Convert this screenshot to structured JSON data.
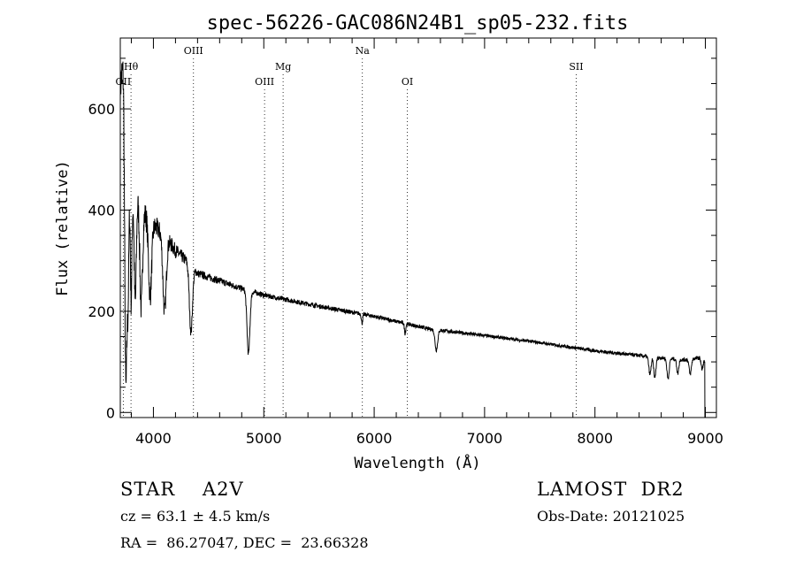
{
  "chart_data": {
    "type": "line",
    "title": "spec-56226-GAC086N24B1_sp05-232.fits",
    "xlabel": "Wavelength (Å)",
    "ylabel": "Flux (relative)",
    "xlim": [
      3700,
      9100
    ],
    "ylim": [
      -10,
      740
    ],
    "xticks": [
      4000,
      5000,
      6000,
      7000,
      8000,
      9000
    ],
    "xtick_labels": [
      "4000",
      "5000",
      "6000",
      "7000",
      "8000",
      "9000"
    ],
    "yticks": [
      0,
      200,
      400,
      600
    ],
    "ytick_labels": [
      "0",
      "200",
      "400",
      "600"
    ],
    "grid": false,
    "lines": [
      {
        "label": "OII",
        "x": 3727,
        "row": 3
      },
      {
        "label": "Hθ",
        "x": 3797,
        "row": 2
      },
      {
        "label": "OIII",
        "x": 4363,
        "row": 1
      },
      {
        "label": "OIII",
        "x": 5007,
        "row": 3
      },
      {
        "label": "Mg",
        "x": 5175,
        "row": 2
      },
      {
        "label": "Na",
        "x": 5893,
        "row": 1
      },
      {
        "label": "OI",
        "x": 6300,
        "row": 3
      },
      {
        "label": "SII",
        "x": 7830,
        "row": 2
      }
    ],
    "series": [
      {
        "continuum": [
          [
            3700,
            640
          ],
          [
            3730,
            700
          ],
          [
            3750,
            620
          ],
          [
            3800,
            470
          ],
          [
            3900,
            400
          ],
          [
            4000,
            370
          ],
          [
            4100,
            350
          ],
          [
            4200,
            320
          ],
          [
            4300,
            300
          ],
          [
            4400,
            275
          ],
          [
            4600,
            260
          ],
          [
            4800,
            245
          ],
          [
            5000,
            232
          ],
          [
            5500,
            210
          ],
          [
            6000,
            190
          ],
          [
            6500,
            165
          ],
          [
            7000,
            152
          ],
          [
            7500,
            138
          ],
          [
            8000,
            122
          ],
          [
            8500,
            110
          ],
          [
            8800,
            104
          ],
          [
            8950,
            108
          ],
          [
            9000,
            100
          ]
        ],
        "absorption": [
          [
            3750,
            560,
            10
          ],
          [
            3771,
            290,
            8
          ],
          [
            3798,
            250,
            8
          ],
          [
            3835,
            230,
            10
          ],
          [
            3889,
            200,
            12
          ],
          [
            3970,
            150,
            14
          ],
          [
            4101,
            150,
            15
          ],
          [
            4340,
            130,
            14
          ],
          [
            4861,
            125,
            13
          ],
          [
            6563,
            40,
            12
          ],
          [
            5890,
            18,
            6
          ],
          [
            6280,
            20,
            6
          ],
          [
            8498,
            35,
            10
          ],
          [
            8542,
            40,
            10
          ],
          [
            8662,
            40,
            10
          ],
          [
            8750,
            28,
            9
          ],
          [
            8863,
            30,
            10
          ],
          [
            8970,
            20,
            8
          ]
        ],
        "noise": [
          [
            3700,
            40
          ],
          [
            3800,
            35
          ],
          [
            3900,
            28
          ],
          [
            4000,
            22
          ],
          [
            4200,
            14
          ],
          [
            4400,
            8
          ],
          [
            5000,
            5
          ],
          [
            6000,
            4
          ],
          [
            7500,
            3
          ],
          [
            9000,
            4
          ]
        ]
      }
    ]
  },
  "annotations": {
    "object": "STAR    A2V",
    "survey": "LAMOST  DR2",
    "redshift": "cz = 63.1 ± 4.5 km/s",
    "obs_date": "Obs-Date: 20121025",
    "coords": "RA =  86.27047, DEC =  23.66328"
  }
}
